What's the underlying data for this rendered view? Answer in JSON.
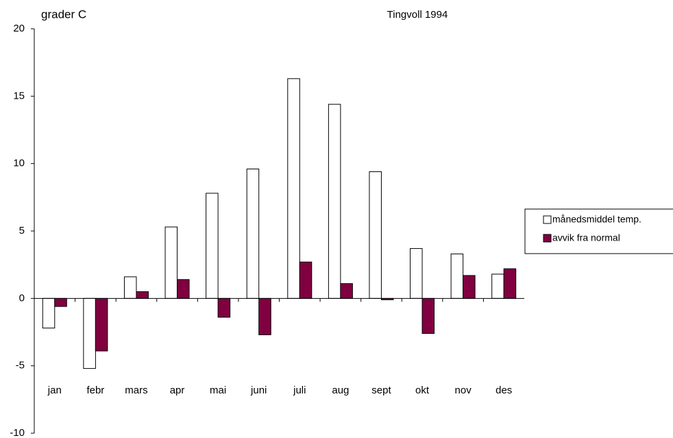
{
  "chart_data": {
    "type": "bar",
    "title": "Tingvoll 1994",
    "y_label": "grader C",
    "categories": [
      "jan",
      "febr",
      "mars",
      "apr",
      "mai",
      "juni",
      "juli",
      "aug",
      "sept",
      "okt",
      "nov",
      "des"
    ],
    "series": [
      {
        "name": "månedsmiddel temp.",
        "color": "#ffffff",
        "values": [
          -2.2,
          -5.2,
          1.6,
          5.3,
          7.8,
          9.6,
          16.3,
          14.4,
          9.4,
          3.7,
          3.3,
          1.8
        ]
      },
      {
        "name": "avvik fra normal",
        "color": "#800040",
        "values": [
          -0.6,
          -3.9,
          0.5,
          1.4,
          -1.4,
          -2.7,
          2.7,
          1.1,
          -0.1,
          -2.6,
          1.7,
          2.2
        ]
      }
    ],
    "ylim": [
      -10,
      20
    ],
    "yticks": [
      -10,
      -5,
      0,
      5,
      10,
      15,
      20
    ],
    "grid": false,
    "legend": "right"
  }
}
